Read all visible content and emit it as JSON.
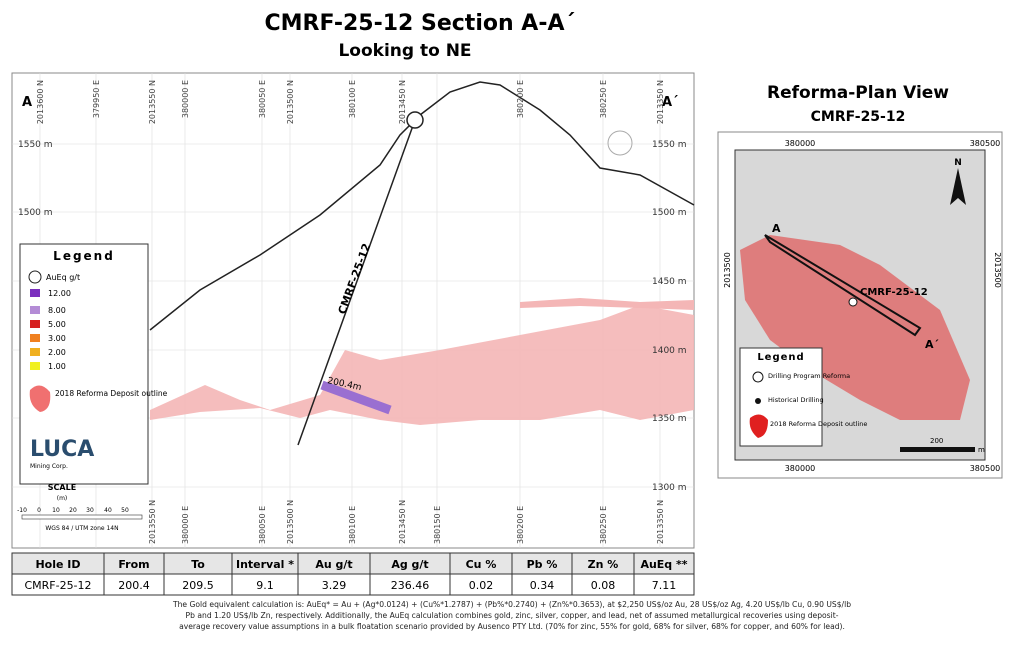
{
  "header": {
    "title": "CMRF-25-12  Section A-A´",
    "subtitle": "Looking to NE"
  },
  "section": {
    "end_left": "A",
    "end_right": "A´",
    "top_coords": [
      "2013600 N",
      "379950 E",
      "2013550 N",
      "380000 E",
      "380050 E",
      "2013500 N",
      "380100 E",
      "2013450 N",
      "380200 E",
      "380250 E",
      "2013350 N"
    ],
    "bottom_coords": [
      "2013550 N",
      "380000 E",
      "380050 E",
      "2013500 N",
      "380100 E",
      "2013450 N",
      "380150 E",
      "380200 E",
      "380250 E",
      "2013350 N"
    ],
    "elev_right": [
      "1550 m",
      "1500 m",
      "1450 m",
      "1400 m",
      "1350 m",
      "1300 m"
    ],
    "elev_left": [
      "1550 m",
      "1500 m"
    ],
    "hole_label": "CMRF-25-12",
    "intercept_label": "200.4m",
    "legend": {
      "title": "Legend",
      "unit": "AuEq g/t",
      "grades": [
        "12.00",
        "8.00",
        "5.00",
        "3.00",
        "2.00",
        "1.00"
      ],
      "outline": "2018 Reforma Deposit outline"
    },
    "logo": {
      "name": "LUCA",
      "sub": "Mining Corp."
    },
    "scale": {
      "title": "SCALE",
      "unit": "(m)",
      "ticks": [
        "-10",
        "0",
        "10",
        "20",
        "30",
        "40",
        "50"
      ],
      "datum": "WGS 84 / UTM zone 14N"
    }
  },
  "plan": {
    "title": "Reforma-Plan View",
    "subtitle": "CMRF-25-12",
    "top_coords": [
      "380000",
      "380500"
    ],
    "bottom_coords": [
      "380000",
      "380500"
    ],
    "side_coords": [
      "2013500",
      "2013500"
    ],
    "end_left": "A",
    "end_right": "A´",
    "hole_label": "CMRF-25-12",
    "north": "N",
    "legend": {
      "title": "Legend",
      "items": [
        "Drilling Program Reforma",
        "Historical Drilling",
        "2018 Reforma Deposit outline"
      ]
    },
    "scale_value": "200",
    "scale_unit": "m"
  },
  "table": {
    "headers": [
      "Hole ID",
      "From",
      "To",
      "Interval *",
      "Au g/t",
      "Ag g/t",
      "Cu %",
      "Pb %",
      "Zn %",
      "AuEq **"
    ],
    "rows": [
      [
        "CMRF-25-12",
        "200.4",
        "209.5",
        "9.1",
        "3.29",
        "236.46",
        "0.02",
        "0.34",
        "0.08",
        "7.11"
      ]
    ]
  },
  "footnote": [
    "The Gold equivalent calculation is: AuEq* = Au + (Ag*0.0124) + (Cu%*1.2787) + (Pb%*0.2740) + (Zn%*0.3653), at $2,250 US$/oz Au, 28 US$/oz Ag, 4.20 US$/lb Cu, 0.90 US$/lb",
    "Pb and 1.20 US$/lb Zn, respectively. Additionally, the AuEq calculation combines gold, zinc, silver, copper, and lead, net of assumed metallurgical recoveries using deposit-",
    "average recovery value assumptions in a bulk floatation scenario provided by Ausenco PTY Ltd. (70% for zinc, 55% for gold, 68% for silver, 68% for copper, and 60% for lead)."
  ]
}
